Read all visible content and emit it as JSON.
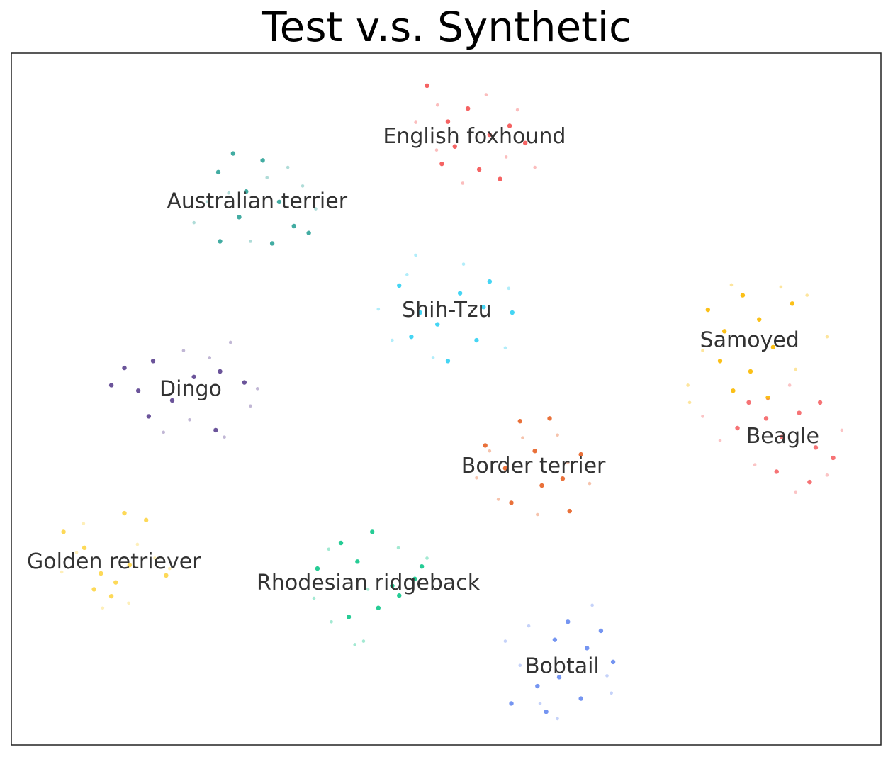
{
  "chart_data": {
    "type": "scatter",
    "title": "Test v.s. Synthetic",
    "xlim": [
      0,
      100
    ],
    "ylim": [
      0,
      100
    ],
    "series": [
      {
        "name": "English foxhound",
        "color": "#f45b5b",
        "test": {
          "x": [
            47.8,
            50.2,
            52.5,
            55.0,
            57.3,
            59.1,
            49.5,
            53.8,
            56.2,
            51.0
          ],
          "y": [
            95.3,
            90.1,
            92.0,
            88.2,
            89.5,
            87.0,
            84.0,
            83.2,
            81.8,
            86.5
          ]
        },
        "synthetic": {
          "x": [
            46.5,
            48.9,
            54.6,
            58.2,
            60.2,
            51.9,
            56.9,
            49.0
          ],
          "y": [
            90.0,
            86.0,
            94.0,
            91.8,
            83.5,
            81.2,
            85.0,
            92.5
          ]
        }
      },
      {
        "name": "Australian terrier",
        "color": "#38a89d",
        "test": {
          "x": [
            23.8,
            25.5,
            27.0,
            28.9,
            30.8,
            32.5,
            34.2,
            26.2,
            30.0,
            24.0
          ],
          "y": [
            82.8,
            85.5,
            80.0,
            84.5,
            78.5,
            75.0,
            74.0,
            76.3,
            72.5,
            72.8
          ]
        },
        "synthetic": {
          "x": [
            21.0,
            22.5,
            29.4,
            31.8,
            33.5,
            27.5,
            25.0,
            35.0
          ],
          "y": [
            75.5,
            78.5,
            82.0,
            83.5,
            80.8,
            72.8,
            79.8,
            77.5
          ]
        }
      },
      {
        "name": "Shih-Tzu",
        "color": "#3bd3f3",
        "test": {
          "x": [
            44.6,
            47.0,
            49.0,
            51.6,
            53.5,
            55.0,
            57.6,
            46.0,
            50.2,
            54.3
          ],
          "y": [
            66.4,
            62.5,
            60.8,
            65.3,
            58.5,
            67.0,
            62.5,
            59.0,
            55.5,
            63.3
          ]
        },
        "synthetic": {
          "x": [
            42.2,
            43.8,
            45.5,
            52.0,
            56.8,
            48.5,
            57.2,
            46.5
          ],
          "y": [
            63.0,
            58.5,
            68.0,
            69.5,
            57.4,
            56.0,
            66.0,
            70.8
          ]
        }
      },
      {
        "name": "Samoyed",
        "color": "#fbbd0b",
        "test": {
          "x": [
            80.1,
            82.0,
            84.1,
            86.0,
            87.6,
            89.8,
            81.5,
            85.0,
            87.0,
            83.0
          ],
          "y": [
            62.9,
            59.8,
            65.0,
            61.5,
            57.5,
            63.8,
            55.5,
            54.0,
            50.2,
            51.2
          ]
        },
        "synthetic": {
          "x": [
            77.8,
            79.5,
            88.5,
            91.5,
            93.8,
            82.8,
            90.2,
            78.0
          ],
          "y": [
            52.0,
            57.0,
            66.2,
            65.0,
            59.0,
            66.5,
            54.3,
            49.5
          ]
        }
      },
      {
        "name": "Beagle",
        "color": "#f56b6e",
        "test": {
          "x": [
            84.8,
            86.8,
            88.6,
            90.6,
            92.5,
            94.5,
            88.0,
            91.8,
            83.5,
            93.0
          ],
          "y": [
            49.5,
            47.2,
            44.5,
            48.0,
            43.0,
            41.5,
            39.5,
            38.0,
            45.8,
            49.5
          ]
        },
        "synthetic": {
          "x": [
            79.5,
            81.5,
            85.5,
            90.2,
            95.5,
            87.0,
            93.8,
            89.5
          ],
          "y": [
            47.5,
            44.0,
            40.5,
            36.5,
            45.5,
            50.0,
            39.0,
            52.0
          ]
        }
      },
      {
        "name": "Dingo",
        "color": "#634b95",
        "test": {
          "x": [
            11.5,
            13.0,
            14.6,
            16.3,
            18.5,
            21.0,
            24.0,
            26.8,
            15.8,
            23.5
          ],
          "y": [
            52.0,
            54.5,
            51.2,
            55.5,
            49.8,
            53.2,
            54.0,
            52.4,
            47.5,
            45.5
          ]
        },
        "synthetic": {
          "x": [
            19.8,
            22.8,
            25.2,
            27.5,
            17.5,
            20.5,
            28.3,
            24.5
          ],
          "y": [
            57.0,
            56.0,
            58.2,
            49.0,
            45.2,
            47.0,
            51.5,
            44.5
          ]
        }
      },
      {
        "name": "Border terrier",
        "color": "#e8692f",
        "test": {
          "x": [
            54.5,
            56.8,
            58.5,
            60.2,
            61.9,
            63.4,
            65.5,
            57.5,
            61.0,
            64.2
          ],
          "y": [
            43.3,
            40.0,
            46.8,
            42.5,
            47.2,
            38.5,
            42.0,
            35.0,
            37.5,
            33.8
          ]
        },
        "synthetic": {
          "x": [
            53.5,
            55.0,
            58.8,
            62.8,
            66.5,
            60.5,
            56.0,
            64.0
          ],
          "y": [
            38.6,
            42.5,
            44.4,
            44.8,
            37.8,
            33.3,
            35.5,
            40.8
          ]
        }
      },
      {
        "name": "Golden retriever",
        "color": "#fdd74f",
        "test": {
          "x": [
            6.0,
            8.4,
            10.3,
            12.0,
            13.6,
            15.5,
            17.8,
            9.5,
            11.5,
            13.0
          ],
          "y": [
            30.8,
            28.5,
            24.8,
            23.5,
            26.0,
            32.5,
            24.5,
            22.5,
            21.5,
            33.5
          ]
        },
        "synthetic": {
          "x": [
            5.8,
            7.5,
            14.5,
            16.5,
            18.2,
            10.5,
            13.5,
            8.3
          ],
          "y": [
            25.0,
            27.8,
            29.0,
            27.0,
            25.5,
            19.8,
            20.5,
            32.0
          ]
        }
      },
      {
        "name": "Rhodesian ridgeback",
        "color": "#1ac98f",
        "test": {
          "x": [
            35.2,
            37.9,
            39.8,
            41.5,
            43.8,
            46.4,
            47.2,
            38.8,
            42.2,
            44.6
          ],
          "y": [
            25.5,
            29.2,
            26.5,
            30.8,
            23.0,
            24.0,
            25.8,
            18.5,
            19.8,
            21.6
          ]
        },
        "synthetic": {
          "x": [
            34.8,
            36.5,
            40.5,
            44.5,
            47.8,
            39.5,
            41.0,
            36.8
          ],
          "y": [
            21.2,
            28.3,
            15.0,
            28.5,
            27.0,
            14.5,
            22.5,
            17.8
          ]
        }
      },
      {
        "name": "Bobtail",
        "color": "#6e8ff0",
        "test": {
          "x": [
            57.5,
            60.5,
            62.5,
            64.0,
            66.2,
            67.8,
            69.2,
            63.0,
            65.5,
            61.5
          ],
          "y": [
            6.0,
            8.5,
            15.2,
            17.8,
            14.0,
            16.5,
            12.0,
            9.8,
            6.7,
            4.8
          ]
        },
        "synthetic": {
          "x": [
            56.8,
            58.5,
            60.8,
            66.8,
            68.5,
            62.8,
            59.5,
            69.0
          ],
          "y": [
            15.0,
            11.5,
            6.0,
            20.2,
            10.0,
            3.8,
            17.2,
            7.5
          ]
        }
      }
    ]
  }
}
